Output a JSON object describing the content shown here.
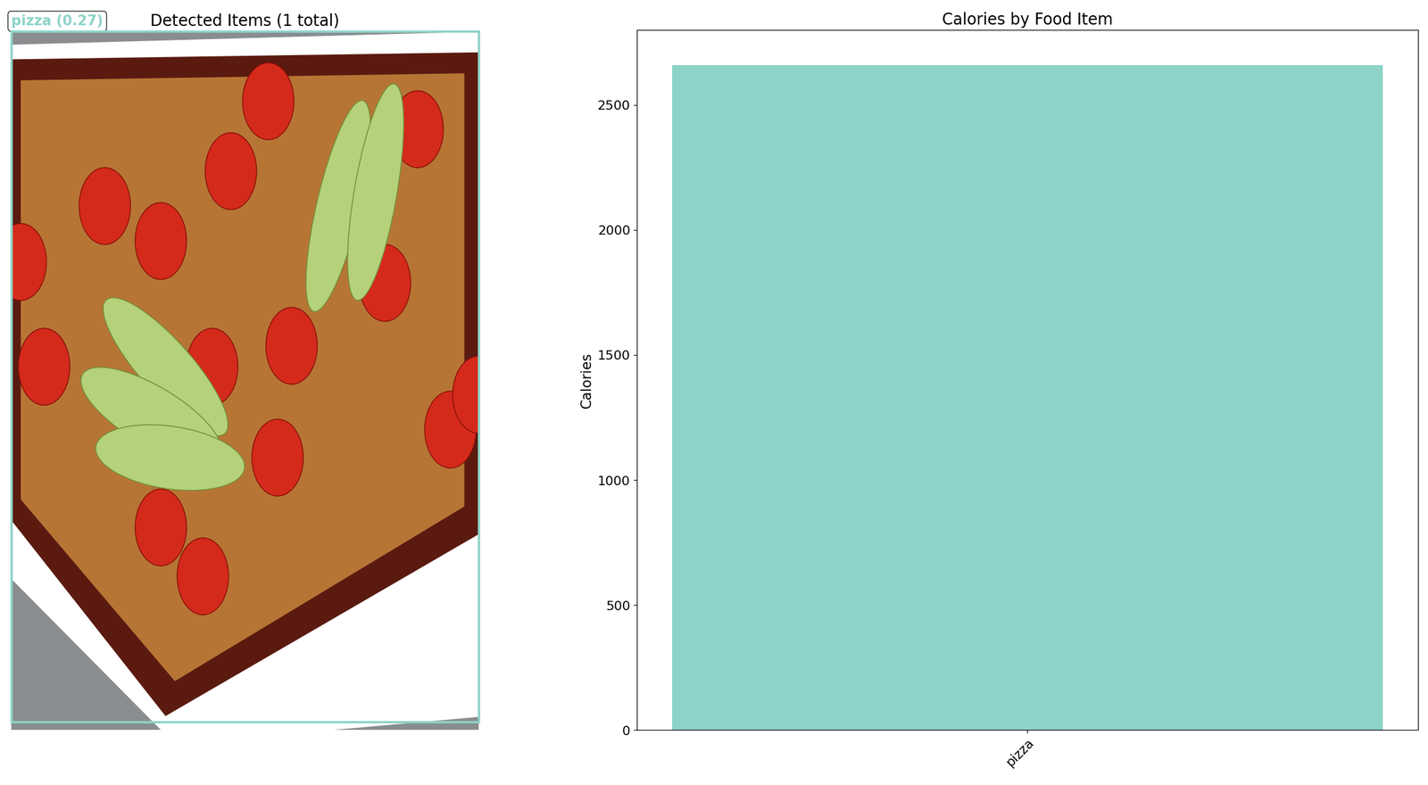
{
  "image_panel": {
    "title": "Detected Items (1 total)",
    "boxes": [
      {
        "label": "pizza (0.27)"
      }
    ]
  },
  "chart_data": {
    "type": "bar",
    "title": "Calories by Food Item",
    "ylabel": "Calories",
    "categories": [
      "pizza"
    ],
    "values": [
      2660
    ],
    "color": "#8dd3c7",
    "ylim": [
      0,
      2800
    ],
    "yticks": [
      0,
      500,
      1000,
      1500,
      2000,
      2500
    ]
  }
}
